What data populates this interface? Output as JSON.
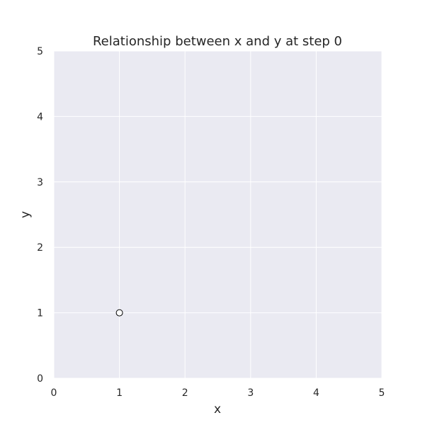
{
  "chart_data": {
    "type": "scatter",
    "title": "Relationship between x and y at step 0",
    "xlabel": "x",
    "ylabel": "y",
    "xlim": [
      0,
      5
    ],
    "ylim": [
      0,
      5
    ],
    "x_ticks": [
      "0",
      "1",
      "2",
      "3",
      "4",
      "5"
    ],
    "y_ticks": [
      "0",
      "1",
      "2",
      "3",
      "4",
      "5"
    ],
    "grid": true,
    "series": [
      {
        "points": [
          {
            "x": 1,
            "y": 1
          }
        ]
      }
    ]
  },
  "colors": {
    "plot_background": "#EAEAF2",
    "grid": "#FFFFFF",
    "point_fill": "#FFFFFF",
    "point_edge": "#000000",
    "text": "#262626"
  }
}
